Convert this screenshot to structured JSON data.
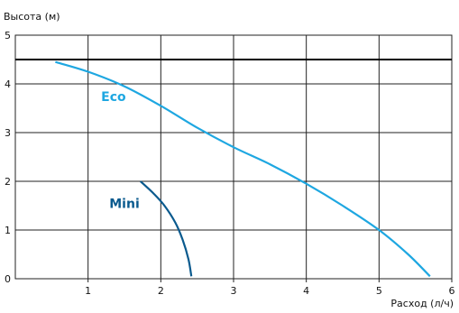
{
  "chart_data": {
    "type": "line",
    "ylabel": "Высота (м)",
    "xlabel": "Расход (л/ч)",
    "xlim": [
      0,
      6
    ],
    "ylim": [
      0,
      5
    ],
    "x_ticks": [
      "1",
      "2",
      "3",
      "4",
      "5",
      "6"
    ],
    "y_ticks": [
      "0",
      "1",
      "2",
      "3",
      "4",
      "5"
    ],
    "grid": true,
    "reference_line": {
      "y": 4.5,
      "color": "#000000"
    },
    "series": [
      {
        "name": "Eco",
        "color": "#1ea7e1",
        "label_at": [
          1.35,
          3.65
        ],
        "points": [
          [
            0.55,
            4.45
          ],
          [
            1.0,
            4.25
          ],
          [
            1.5,
            3.95
          ],
          [
            2.0,
            3.55
          ],
          [
            2.5,
            3.1
          ],
          [
            3.0,
            2.7
          ],
          [
            3.5,
            2.35
          ],
          [
            4.0,
            1.95
          ],
          [
            4.5,
            1.5
          ],
          [
            5.0,
            1.0
          ],
          [
            5.4,
            0.5
          ],
          [
            5.7,
            0.05
          ]
        ]
      },
      {
        "name": "Mini",
        "color": "#0a5a8e",
        "label_at": [
          1.5,
          1.45
        ],
        "points": [
          [
            1.72,
            2.0
          ],
          [
            1.9,
            1.75
          ],
          [
            2.05,
            1.5
          ],
          [
            2.2,
            1.15
          ],
          [
            2.3,
            0.8
          ],
          [
            2.38,
            0.4
          ],
          [
            2.42,
            0.05
          ]
        ]
      }
    ]
  }
}
